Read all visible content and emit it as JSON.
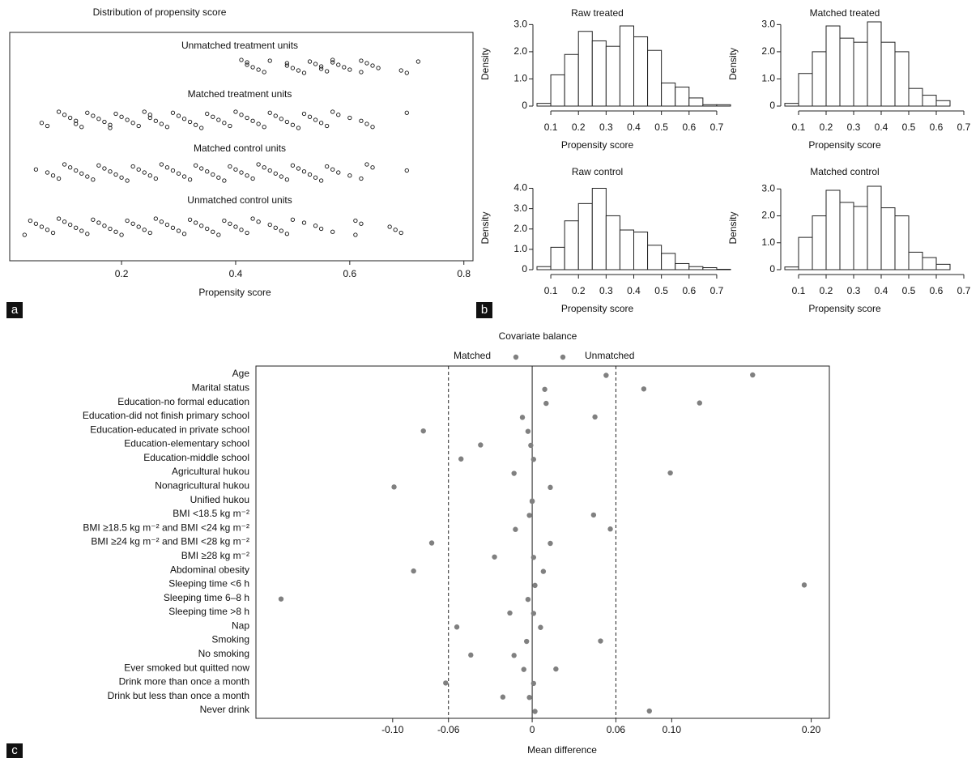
{
  "panel_labels": [
    "a",
    "b",
    "c"
  ],
  "chart_data": [
    {
      "type": "strip",
      "title": "Distribution of propensity score",
      "x_label": "Propensity score",
      "xlim": [
        0.004,
        0.816
      ],
      "xticks": [
        0.2,
        0.4,
        0.6,
        0.8
      ],
      "series": [
        {
          "name": "Unmatched treatment units",
          "values": [
            0.41,
            0.42,
            0.42,
            0.43,
            0.44,
            0.45,
            0.46,
            0.49,
            0.49,
            0.5,
            0.51,
            0.52,
            0.53,
            0.54,
            0.55,
            0.55,
            0.56,
            0.57,
            0.57,
            0.58,
            0.59,
            0.6,
            0.62,
            0.62,
            0.63,
            0.64,
            0.65,
            0.69,
            0.7,
            0.72
          ]
        },
        {
          "name": "Matched treatment units",
          "values": [
            0.06,
            0.07,
            0.09,
            0.1,
            0.11,
            0.12,
            0.12,
            0.13,
            0.14,
            0.15,
            0.16,
            0.17,
            0.18,
            0.18,
            0.19,
            0.2,
            0.21,
            0.22,
            0.23,
            0.24,
            0.25,
            0.25,
            0.26,
            0.27,
            0.28,
            0.29,
            0.3,
            0.31,
            0.32,
            0.33,
            0.34,
            0.35,
            0.36,
            0.37,
            0.38,
            0.39,
            0.4,
            0.41,
            0.42,
            0.43,
            0.44,
            0.45,
            0.46,
            0.47,
            0.48,
            0.49,
            0.5,
            0.51,
            0.52,
            0.53,
            0.54,
            0.55,
            0.56,
            0.57,
            0.58,
            0.6,
            0.62,
            0.63,
            0.64,
            0.7
          ]
        },
        {
          "name": "Matched control units",
          "values": [
            0.05,
            0.07,
            0.08,
            0.09,
            0.1,
            0.11,
            0.12,
            0.13,
            0.14,
            0.15,
            0.16,
            0.17,
            0.18,
            0.19,
            0.2,
            0.21,
            0.22,
            0.23,
            0.24,
            0.25,
            0.26,
            0.27,
            0.28,
            0.29,
            0.3,
            0.31,
            0.32,
            0.33,
            0.34,
            0.35,
            0.36,
            0.37,
            0.38,
            0.39,
            0.4,
            0.41,
            0.42,
            0.43,
            0.44,
            0.45,
            0.46,
            0.47,
            0.48,
            0.49,
            0.5,
            0.51,
            0.52,
            0.53,
            0.54,
            0.55,
            0.56,
            0.57,
            0.58,
            0.6,
            0.62,
            0.63,
            0.64,
            0.7
          ]
        },
        {
          "name": "Unmatched control units",
          "values": [
            0.03,
            0.04,
            0.05,
            0.06,
            0.07,
            0.08,
            0.09,
            0.1,
            0.11,
            0.12,
            0.13,
            0.14,
            0.15,
            0.16,
            0.17,
            0.18,
            0.19,
            0.2,
            0.21,
            0.22,
            0.23,
            0.24,
            0.25,
            0.26,
            0.27,
            0.28,
            0.29,
            0.3,
            0.31,
            0.32,
            0.33,
            0.34,
            0.35,
            0.36,
            0.37,
            0.38,
            0.39,
            0.4,
            0.41,
            0.42,
            0.43,
            0.44,
            0.46,
            0.47,
            0.48,
            0.49,
            0.5,
            0.52,
            0.54,
            0.55,
            0.57,
            0.61,
            0.61,
            0.62,
            0.67,
            0.68,
            0.69
          ]
        }
      ]
    },
    {
      "type": "histogram",
      "title": "Raw treated",
      "x_label": "Propensity score",
      "y_label": "Density",
      "bins": [
        0.05,
        0.1,
        0.15,
        0.2,
        0.25,
        0.3,
        0.35,
        0.4,
        0.45,
        0.5,
        0.55,
        0.6,
        0.65,
        0.7,
        0.75
      ],
      "values": [
        0.1,
        1.15,
        1.9,
        2.75,
        2.4,
        2.2,
        2.95,
        2.55,
        2.05,
        0.85,
        0.7,
        0.3,
        0.05,
        0.05
      ],
      "xlim": [
        0.05,
        0.75
      ],
      "ylim": [
        0,
        3.1
      ],
      "xticks": [
        0.1,
        0.2,
        0.3,
        0.4,
        0.5,
        0.6,
        0.7
      ],
      "yticks": [
        0,
        {
          "value": 1,
          "label": "1.0"
        },
        {
          "value": 2,
          "label": "2.0"
        },
        {
          "value": 3,
          "label": "3.0"
        }
      ]
    },
    {
      "type": "histogram",
      "title": "Matched treated",
      "x_label": "Propensity score",
      "y_label": "Density",
      "bins": [
        0.05,
        0.1,
        0.15,
        0.2,
        0.25,
        0.3,
        0.35,
        0.4,
        0.45,
        0.5,
        0.55,
        0.6,
        0.65,
        0.7,
        0.75
      ],
      "values": [
        0.1,
        1.2,
        2.0,
        2.95,
        2.5,
        2.35,
        3.1,
        2.35,
        2.0,
        0.65,
        0.4,
        0.2,
        0,
        0
      ],
      "xlim": [
        0.05,
        0.75
      ],
      "ylim": [
        0,
        3.1
      ],
      "xticks": [
        0.1,
        0.2,
        0.3,
        0.4,
        0.5,
        0.6,
        0.7
      ],
      "yticks": [
        0,
        {
          "value": 1,
          "label": "1.0"
        },
        {
          "value": 2,
          "label": "2.0"
        },
        {
          "value": 3,
          "label": "3.0"
        }
      ]
    },
    {
      "type": "histogram",
      "title": "Raw control",
      "x_label": "Propensity score",
      "y_label": "Density",
      "bins": [
        0.05,
        0.1,
        0.15,
        0.2,
        0.25,
        0.3,
        0.35,
        0.4,
        0.45,
        0.5,
        0.55,
        0.6,
        0.65,
        0.7,
        0.75
      ],
      "values": [
        0.15,
        1.1,
        2.4,
        3.25,
        4.0,
        2.65,
        1.95,
        1.85,
        1.2,
        0.8,
        0.3,
        0.15,
        0.1,
        0.02
      ],
      "xlim": [
        0.05,
        0.75
      ],
      "ylim": [
        0,
        4.1
      ],
      "xticks": [
        0.1,
        0.2,
        0.3,
        0.4,
        0.5,
        0.6,
        0.7
      ],
      "yticks": [
        0,
        {
          "value": 1,
          "label": "1.0"
        },
        {
          "value": 2,
          "label": "2.0"
        },
        {
          "value": 3,
          "label": "3.0"
        },
        {
          "value": 4,
          "label": "4.0"
        }
      ]
    },
    {
      "type": "histogram",
      "title": "Matched control",
      "x_label": "Propensity score",
      "y_label": "Density",
      "bins": [
        0.05,
        0.1,
        0.15,
        0.2,
        0.25,
        0.3,
        0.35,
        0.4,
        0.45,
        0.5,
        0.55,
        0.6,
        0.65,
        0.7,
        0.75
      ],
      "values": [
        0.1,
        1.2,
        2.0,
        2.95,
        2.5,
        2.35,
        3.1,
        2.3,
        2.0,
        0.65,
        0.45,
        0.2,
        0,
        0
      ],
      "xlim": [
        0.05,
        0.75
      ],
      "ylim": [
        0,
        3.1
      ],
      "xticks": [
        0.1,
        0.2,
        0.3,
        0.4,
        0.5,
        0.6,
        0.7
      ],
      "yticks": [
        0,
        {
          "value": 1,
          "label": "1.0"
        },
        {
          "value": 2,
          "label": "2.0"
        },
        {
          "value": 3,
          "label": "3.0"
        }
      ]
    },
    {
      "type": "dot",
      "title": "Covariate balance",
      "x_label": "Mean difference",
      "categories": [
        "Age",
        "Marital status",
        "Education-no formal education",
        "Education-did not finish primary school",
        "Education-educated in private school",
        "Education-elementary school",
        "Education-middle school",
        "Agricultural hukou",
        "Nonagricultural hukou",
        "Unified hukou",
        "BMI <18.5 kg m⁻²",
        "BMI ≥18.5 kg m⁻² and BMI <24 kg m⁻²",
        "BMI ≥24 kg m⁻² and BMI <28 kg m⁻²",
        "BMI ≥28 kg m⁻²",
        "Abdominal obesity",
        "Sleeping time <6 h",
        "Sleeping time 6–8 h",
        "Sleeping time >8 h",
        "Nap",
        "Smoking",
        "No smoking",
        "Ever smoked but quitted now",
        "Drink more than once a month",
        "Drink but less than once a month",
        "Never drink"
      ],
      "series": [
        {
          "name": "Matched",
          "color": "#808080",
          "values": [
            0.053,
            0.009,
            0.01,
            -0.007,
            -0.003,
            -0.001,
            0.001,
            -0.013,
            0.013,
            0.0,
            -0.002,
            -0.012,
            0.013,
            0.001,
            0.008,
            0.002,
            -0.003,
            0.001,
            0.006,
            -0.004,
            -0.013,
            -0.006,
            0.001,
            -0.002,
            0.002
          ]
        },
        {
          "name": "Unmatched",
          "color": "#808080",
          "values": [
            0.158,
            0.08,
            0.12,
            0.045,
            -0.078,
            -0.037,
            -0.051,
            0.099,
            -0.099,
            0.0,
            0.044,
            0.056,
            -0.072,
            -0.027,
            -0.085,
            0.195,
            -0.18,
            -0.016,
            -0.054,
            0.049,
            -0.044,
            0.017,
            -0.062,
            -0.021,
            0.084
          ]
        }
      ],
      "xlim": [
        -0.198,
        0.213
      ],
      "xticks": [
        {
          "value": -0.1,
          "label": "-0.10"
        },
        -0.06,
        0,
        0.06,
        {
          "value": 0.1,
          "label": "0.10"
        },
        {
          "value": 0.2,
          "label": "0.20"
        }
      ],
      "dashed_lines": [
        -0.06,
        0.06
      ]
    }
  ]
}
